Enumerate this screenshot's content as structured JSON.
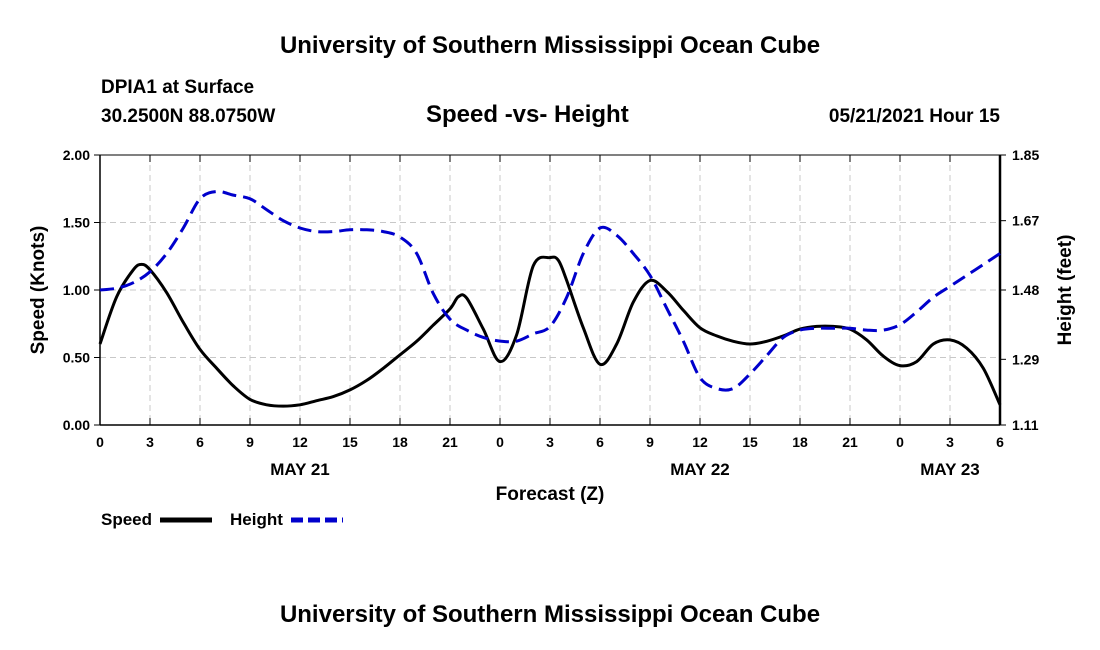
{
  "page": {
    "title_top": "University of Southern Mississippi Ocean Cube",
    "title_bottom": "University of Southern Mississippi Ocean Cube",
    "station": "DPIA1 at Surface",
    "coords": "30.2500N  88.0750W",
    "subtitle": "Speed -vs- Height",
    "datetime": "05/21/2021 Hour 15"
  },
  "legend": {
    "speed": "Speed",
    "height": "Height"
  },
  "colors": {
    "speed": "#000000",
    "height": "#0000cc",
    "grid": "#c8c8c8"
  },
  "chart_data": {
    "type": "line",
    "title": "Speed -vs- Height",
    "xlabel": "Forecast (Z)",
    "ylabel": "Speed (Knots)",
    "y2label": "Height (feet)",
    "x_range_hours": [
      0,
      54
    ],
    "ylim": [
      0,
      2.0
    ],
    "y2lim": [
      1.11,
      1.85
    ],
    "x_ticks": [
      {
        "hour": 0,
        "label": "0"
      },
      {
        "hour": 3,
        "label": "3"
      },
      {
        "hour": 6,
        "label": "6"
      },
      {
        "hour": 9,
        "label": "9"
      },
      {
        "hour": 12,
        "label": "12"
      },
      {
        "hour": 15,
        "label": "15"
      },
      {
        "hour": 18,
        "label": "18"
      },
      {
        "hour": 21,
        "label": "21"
      },
      {
        "hour": 24,
        "label": "0"
      },
      {
        "hour": 27,
        "label": "3"
      },
      {
        "hour": 30,
        "label": "6"
      },
      {
        "hour": 33,
        "label": "9"
      },
      {
        "hour": 36,
        "label": "12"
      },
      {
        "hour": 39,
        "label": "15"
      },
      {
        "hour": 42,
        "label": "18"
      },
      {
        "hour": 45,
        "label": "21"
      },
      {
        "hour": 48,
        "label": "0"
      },
      {
        "hour": 51,
        "label": "3"
      },
      {
        "hour": 54,
        "label": "6"
      }
    ],
    "date_labels": [
      {
        "hour": 12,
        "label": "MAY 21"
      },
      {
        "hour": 36,
        "label": "MAY 22"
      },
      {
        "hour": 51,
        "label": "MAY 23"
      }
    ],
    "y_ticks": [
      "0.00",
      "0.50",
      "1.00",
      "1.50",
      "2.00"
    ],
    "y_tick_values": [
      0,
      0.5,
      1.0,
      1.5,
      2.0
    ],
    "y2_ticks": [
      "1.11",
      "1.29",
      "1.48",
      "1.67",
      "1.85"
    ],
    "y2_tick_values": [
      1.11,
      1.29,
      1.48,
      1.67,
      1.85
    ],
    "series": [
      {
        "name": "Speed",
        "axis": "left",
        "style": "solid",
        "x": [
          0,
          1,
          2,
          2.5,
          3,
          4,
          5,
          6,
          7,
          8,
          9,
          10,
          11,
          12,
          13,
          14,
          15,
          16,
          17,
          18,
          19,
          20,
          21,
          21.5,
          22,
          23,
          24,
          25,
          26,
          27,
          27.5,
          28,
          29,
          30,
          31,
          32,
          33,
          34,
          35,
          36,
          37,
          38,
          39,
          40,
          41,
          42,
          43,
          44,
          45,
          46,
          47,
          48,
          49,
          50,
          51,
          52,
          53,
          54
        ],
        "values": [
          0.6,
          0.95,
          1.15,
          1.19,
          1.15,
          0.98,
          0.76,
          0.56,
          0.42,
          0.29,
          0.19,
          0.15,
          0.14,
          0.15,
          0.18,
          0.21,
          0.26,
          0.33,
          0.42,
          0.52,
          0.62,
          0.74,
          0.86,
          0.95,
          0.94,
          0.71,
          0.47,
          0.67,
          1.18,
          1.24,
          1.22,
          1.07,
          0.72,
          0.45,
          0.6,
          0.91,
          1.07,
          0.99,
          0.85,
          0.72,
          0.66,
          0.62,
          0.6,
          0.62,
          0.66,
          0.71,
          0.73,
          0.73,
          0.71,
          0.63,
          0.51,
          0.44,
          0.47,
          0.6,
          0.63,
          0.57,
          0.42,
          0.15
        ]
      },
      {
        "name": "Height",
        "axis": "right",
        "style": "dashed",
        "x": [
          0,
          1,
          2,
          3,
          4,
          5,
          6,
          7,
          8,
          9,
          10,
          11,
          12,
          13,
          14,
          15,
          16,
          17,
          18,
          19,
          20,
          21,
          22,
          23,
          24,
          25,
          26,
          27,
          28,
          29,
          30,
          31,
          32,
          33,
          34,
          35,
          36,
          37,
          38,
          39,
          40,
          41,
          42,
          43,
          44,
          45,
          46,
          47,
          48,
          49,
          50,
          51,
          52,
          53,
          54
        ],
        "values": [
          1.48,
          1.485,
          1.5,
          1.53,
          1.58,
          1.65,
          1.73,
          1.75,
          1.74,
          1.73,
          1.7,
          1.67,
          1.65,
          1.64,
          1.64,
          1.645,
          1.645,
          1.64,
          1.625,
          1.58,
          1.47,
          1.4,
          1.37,
          1.35,
          1.34,
          1.34,
          1.36,
          1.38,
          1.46,
          1.58,
          1.65,
          1.63,
          1.58,
          1.52,
          1.43,
          1.34,
          1.24,
          1.21,
          1.21,
          1.25,
          1.3,
          1.35,
          1.37,
          1.375,
          1.375,
          1.375,
          1.37,
          1.37,
          1.385,
          1.42,
          1.46,
          1.49,
          1.52,
          1.55,
          1.58
        ]
      }
    ]
  }
}
